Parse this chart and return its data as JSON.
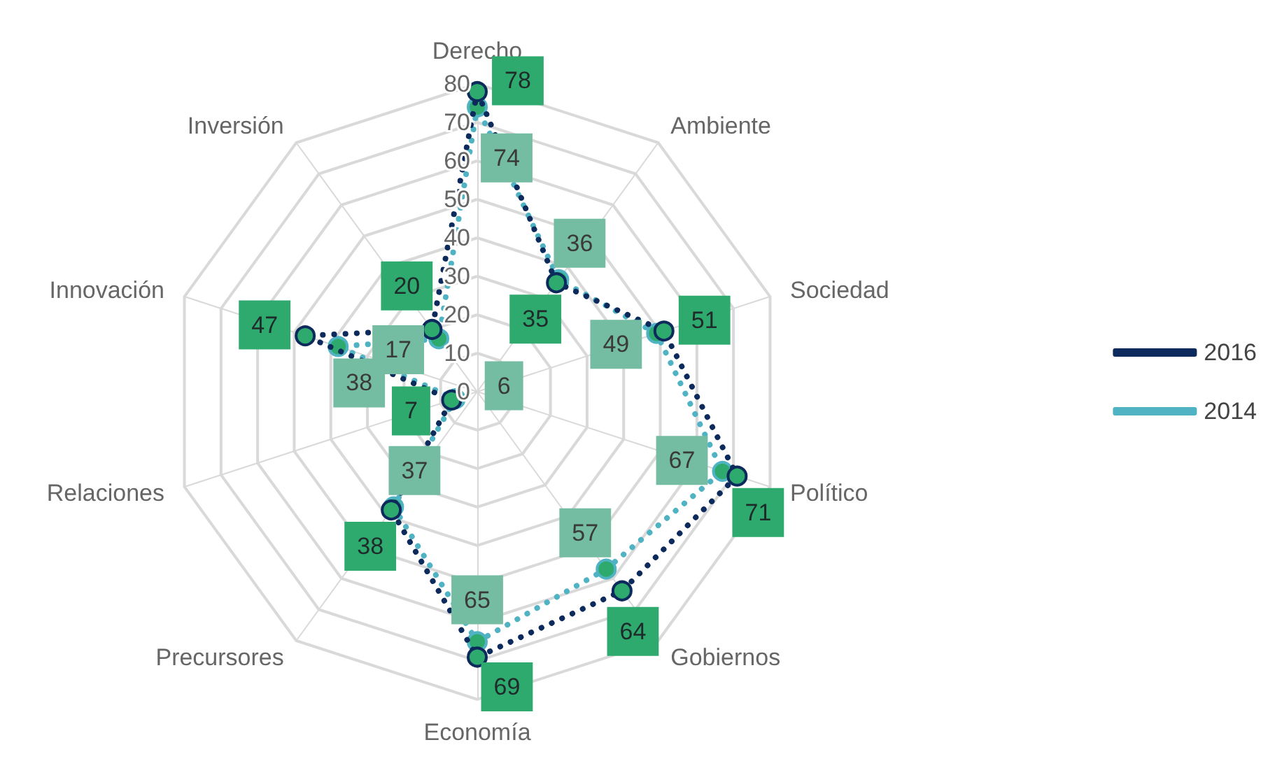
{
  "chart_data": {
    "type": "radar",
    "categories": [
      "Derecho",
      "Ambiente",
      "Sociedad",
      "Político",
      "Gobiernos",
      "Economía",
      "Precursores",
      "Relaciones",
      "Innovación",
      "Inversión"
    ],
    "series": [
      {
        "name": "2016",
        "color": "#0d2a5c",
        "values": [
          78,
          35,
          51,
          71,
          64,
          69,
          38,
          7,
          47,
          20
        ]
      },
      {
        "name": "2014",
        "color": "#4fb3c4",
        "values": [
          74,
          36,
          49,
          67,
          57,
          65,
          37,
          6,
          38,
          17
        ]
      }
    ],
    "ylim": [
      0,
      80
    ],
    "yticks": [
      0,
      10,
      20,
      30,
      40,
      50,
      60,
      70,
      80
    ],
    "grid": true,
    "legend": "right",
    "marker": "circle",
    "line_style": "dotted",
    "data_labels": true
  }
}
